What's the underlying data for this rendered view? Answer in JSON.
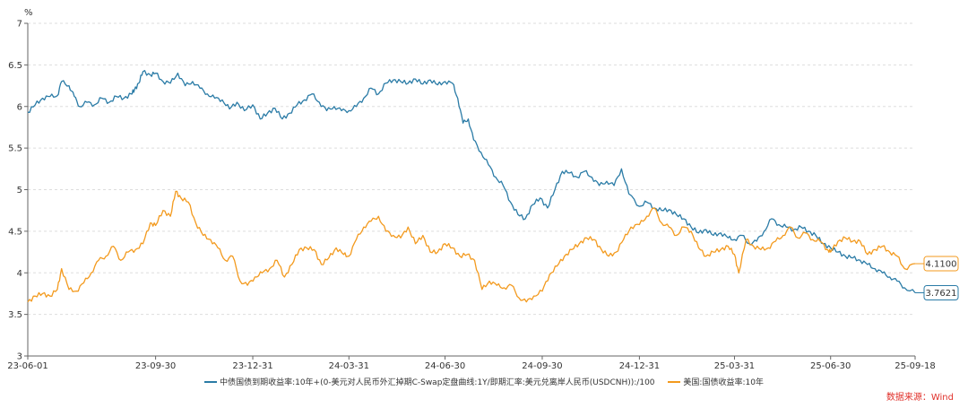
{
  "chart_data": {
    "type": "line",
    "title": "",
    "ylabel": "%",
    "ylim": [
      3,
      7
    ],
    "yticks": [
      "3",
      "3.5",
      "4",
      "4.5",
      "5",
      "5.5",
      "6",
      "6.5",
      "7"
    ],
    "xlim": [
      "2023-06-01",
      "2025-09-18"
    ],
    "xticks": [
      {
        "date": "2023-06-01",
        "label": "23-06-01"
      },
      {
        "date": "2023-09-30",
        "label": "23-09-30"
      },
      {
        "date": "2023-12-31",
        "label": "23-12-31"
      },
      {
        "date": "2024-03-31",
        "label": "24-03-31"
      },
      {
        "date": "2024-06-30",
        "label": "24-06-30"
      },
      {
        "date": "2024-09-30",
        "label": "24-09-30"
      },
      {
        "date": "2024-12-31",
        "label": "24-12-31"
      },
      {
        "date": "2025-03-31",
        "label": "25-03-31"
      },
      {
        "date": "2025-06-30",
        "label": "25-06-30"
      },
      {
        "date": "2025-09-18",
        "label": "25-09-18"
      }
    ],
    "series": [
      {
        "name": "中债国债到期收益率:10年+(0-美元对人民币外汇掉期C-Swap定盘曲线:1Y/即期汇率:美元兑离岸人民币(USDCNH)):/100",
        "color": "#2a7ba6",
        "end_label": "3.7621",
        "points": [
          [
            "2023-06-01",
            5.93
          ],
          [
            "2023-06-08",
            6.02
          ],
          [
            "2023-06-15",
            6.1
          ],
          [
            "2023-06-22",
            6.12
          ],
          [
            "2023-06-29",
            6.13
          ],
          [
            "2023-07-03",
            6.3
          ],
          [
            "2023-07-10",
            6.25
          ],
          [
            "2023-07-15",
            6.12
          ],
          [
            "2023-07-20",
            6.0
          ],
          [
            "2023-07-27",
            6.05
          ],
          [
            "2023-08-03",
            6.02
          ],
          [
            "2023-08-10",
            6.1
          ],
          [
            "2023-08-17",
            6.05
          ],
          [
            "2023-08-24",
            6.12
          ],
          [
            "2023-08-31",
            6.1
          ],
          [
            "2023-09-07",
            6.15
          ],
          [
            "2023-09-10",
            6.2
          ],
          [
            "2023-09-14",
            6.28
          ],
          [
            "2023-09-18",
            6.42
          ],
          [
            "2023-09-25",
            6.38
          ],
          [
            "2023-09-30",
            6.4
          ],
          [
            "2023-10-07",
            6.3
          ],
          [
            "2023-10-14",
            6.28
          ],
          [
            "2023-10-21",
            6.4
          ],
          [
            "2023-10-28",
            6.25
          ],
          [
            "2023-11-04",
            6.3
          ],
          [
            "2023-11-11",
            6.22
          ],
          [
            "2023-11-18",
            6.15
          ],
          [
            "2023-11-25",
            6.1
          ],
          [
            "2023-12-02",
            6.08
          ],
          [
            "2023-12-09",
            5.97
          ],
          [
            "2023-12-16",
            6.05
          ],
          [
            "2023-12-23",
            5.95
          ],
          [
            "2023-12-31",
            6.02
          ],
          [
            "2024-01-07",
            5.85
          ],
          [
            "2024-01-14",
            5.92
          ],
          [
            "2024-01-21",
            5.98
          ],
          [
            "2024-01-28",
            5.85
          ],
          [
            "2024-02-04",
            5.92
          ],
          [
            "2024-02-11",
            6.02
          ],
          [
            "2024-02-18",
            6.08
          ],
          [
            "2024-02-25",
            6.15
          ],
          [
            "2024-03-03",
            6.05
          ],
          [
            "2024-03-10",
            5.95
          ],
          [
            "2024-03-17",
            6.0
          ],
          [
            "2024-03-24",
            5.95
          ],
          [
            "2024-03-31",
            5.95
          ],
          [
            "2024-04-07",
            6.0
          ],
          [
            "2024-04-14",
            6.1
          ],
          [
            "2024-04-21",
            6.22
          ],
          [
            "2024-04-28",
            6.15
          ],
          [
            "2024-05-05",
            6.28
          ],
          [
            "2024-05-12",
            6.32
          ],
          [
            "2024-05-19",
            6.3
          ],
          [
            "2024-05-26",
            6.28
          ],
          [
            "2024-06-02",
            6.33
          ],
          [
            "2024-06-09",
            6.27
          ],
          [
            "2024-06-16",
            6.32
          ],
          [
            "2024-06-23",
            6.26
          ],
          [
            "2024-06-30",
            6.3
          ],
          [
            "2024-07-07",
            6.28
          ],
          [
            "2024-07-12",
            6.1
          ],
          [
            "2024-07-17",
            5.8
          ],
          [
            "2024-07-22",
            5.85
          ],
          [
            "2024-07-27",
            5.6
          ],
          [
            "2024-08-03",
            5.45
          ],
          [
            "2024-08-10",
            5.3
          ],
          [
            "2024-08-17",
            5.15
          ],
          [
            "2024-08-24",
            5.05
          ],
          [
            "2024-08-31",
            4.85
          ],
          [
            "2024-09-07",
            4.7
          ],
          [
            "2024-09-14",
            4.65
          ],
          [
            "2024-09-21",
            4.82
          ],
          [
            "2024-09-28",
            4.9
          ],
          [
            "2024-10-05",
            4.78
          ],
          [
            "2024-10-12",
            5.0
          ],
          [
            "2024-10-19",
            5.22
          ],
          [
            "2024-10-26",
            5.2
          ],
          [
            "2024-11-02",
            5.15
          ],
          [
            "2024-11-09",
            5.22
          ],
          [
            "2024-11-16",
            5.15
          ],
          [
            "2024-11-23",
            5.05
          ],
          [
            "2024-11-30",
            5.1
          ],
          [
            "2024-12-07",
            5.05
          ],
          [
            "2024-12-14",
            5.25
          ],
          [
            "2024-12-21",
            4.95
          ],
          [
            "2024-12-31",
            4.8
          ],
          [
            "2025-01-07",
            4.85
          ],
          [
            "2025-01-14",
            4.78
          ],
          [
            "2025-01-21",
            4.75
          ],
          [
            "2025-01-28",
            4.76
          ],
          [
            "2025-02-04",
            4.7
          ],
          [
            "2025-02-11",
            4.65
          ],
          [
            "2025-02-18",
            4.55
          ],
          [
            "2025-02-25",
            4.48
          ],
          [
            "2025-03-04",
            4.52
          ],
          [
            "2025-03-11",
            4.45
          ],
          [
            "2025-03-18",
            4.48
          ],
          [
            "2025-03-25",
            4.42
          ],
          [
            "2025-03-31",
            4.4
          ],
          [
            "2025-04-07",
            4.45
          ],
          [
            "2025-04-14",
            4.35
          ],
          [
            "2025-04-21",
            4.38
          ],
          [
            "2025-04-28",
            4.5
          ],
          [
            "2025-05-05",
            4.65
          ],
          [
            "2025-05-12",
            4.58
          ],
          [
            "2025-05-19",
            4.55
          ],
          [
            "2025-05-26",
            4.52
          ],
          [
            "2025-06-02",
            4.55
          ],
          [
            "2025-06-09",
            4.5
          ],
          [
            "2025-06-16",
            4.45
          ],
          [
            "2025-06-23",
            4.35
          ],
          [
            "2025-06-30",
            4.3
          ],
          [
            "2025-07-07",
            4.25
          ],
          [
            "2025-07-14",
            4.2
          ],
          [
            "2025-07-21",
            4.18
          ],
          [
            "2025-07-28",
            4.15
          ],
          [
            "2025-08-04",
            4.1
          ],
          [
            "2025-08-11",
            4.05
          ],
          [
            "2025-08-18",
            4.0
          ],
          [
            "2025-08-25",
            3.95
          ],
          [
            "2025-09-01",
            3.9
          ],
          [
            "2025-09-08",
            3.82
          ],
          [
            "2025-09-18",
            3.76
          ]
        ]
      },
      {
        "name": "美国:国债收益率:10年",
        "color": "#f39a1e",
        "end_label": "4.1100",
        "points": [
          [
            "2023-06-01",
            3.65
          ],
          [
            "2023-06-08",
            3.72
          ],
          [
            "2023-06-15",
            3.75
          ],
          [
            "2023-06-22",
            3.72
          ],
          [
            "2023-06-29",
            3.8
          ],
          [
            "2023-07-03",
            4.05
          ],
          [
            "2023-07-10",
            3.8
          ],
          [
            "2023-07-17",
            3.78
          ],
          [
            "2023-07-24",
            3.88
          ],
          [
            "2023-07-31",
            4.0
          ],
          [
            "2023-08-07",
            4.15
          ],
          [
            "2023-08-14",
            4.2
          ],
          [
            "2023-08-21",
            4.32
          ],
          [
            "2023-08-28",
            4.15
          ],
          [
            "2023-09-04",
            4.25
          ],
          [
            "2023-09-11",
            4.28
          ],
          [
            "2023-09-18",
            4.35
          ],
          [
            "2023-09-25",
            4.6
          ],
          [
            "2023-09-30",
            4.57
          ],
          [
            "2023-10-07",
            4.75
          ],
          [
            "2023-10-14",
            4.68
          ],
          [
            "2023-10-19",
            4.98
          ],
          [
            "2023-10-24",
            4.9
          ],
          [
            "2023-10-31",
            4.85
          ],
          [
            "2023-11-07",
            4.6
          ],
          [
            "2023-11-14",
            4.45
          ],
          [
            "2023-11-21",
            4.4
          ],
          [
            "2023-11-28",
            4.3
          ],
          [
            "2023-12-05",
            4.15
          ],
          [
            "2023-12-12",
            4.2
          ],
          [
            "2023-12-19",
            3.9
          ],
          [
            "2023-12-26",
            3.85
          ],
          [
            "2024-01-02",
            3.95
          ],
          [
            "2024-01-09",
            4.0
          ],
          [
            "2024-01-16",
            4.05
          ],
          [
            "2024-01-23",
            4.15
          ],
          [
            "2024-01-30",
            3.95
          ],
          [
            "2024-02-06",
            4.1
          ],
          [
            "2024-02-13",
            4.28
          ],
          [
            "2024-02-20",
            4.3
          ],
          [
            "2024-02-27",
            4.28
          ],
          [
            "2024-03-05",
            4.1
          ],
          [
            "2024-03-12",
            4.18
          ],
          [
            "2024-03-19",
            4.3
          ],
          [
            "2024-03-26",
            4.22
          ],
          [
            "2024-03-31",
            4.2
          ],
          [
            "2024-04-07",
            4.4
          ],
          [
            "2024-04-14",
            4.55
          ],
          [
            "2024-04-21",
            4.62
          ],
          [
            "2024-04-28",
            4.68
          ],
          [
            "2024-05-05",
            4.5
          ],
          [
            "2024-05-12",
            4.45
          ],
          [
            "2024-05-19",
            4.42
          ],
          [
            "2024-05-26",
            4.55
          ],
          [
            "2024-06-02",
            4.35
          ],
          [
            "2024-06-09",
            4.45
          ],
          [
            "2024-06-16",
            4.25
          ],
          [
            "2024-06-23",
            4.25
          ],
          [
            "2024-06-30",
            4.35
          ],
          [
            "2024-07-07",
            4.3
          ],
          [
            "2024-07-14",
            4.2
          ],
          [
            "2024-07-21",
            4.22
          ],
          [
            "2024-07-28",
            4.15
          ],
          [
            "2024-08-04",
            3.8
          ],
          [
            "2024-08-11",
            3.9
          ],
          [
            "2024-08-18",
            3.85
          ],
          [
            "2024-08-25",
            3.82
          ],
          [
            "2024-09-01",
            3.85
          ],
          [
            "2024-09-08",
            3.7
          ],
          [
            "2024-09-15",
            3.65
          ],
          [
            "2024-09-22",
            3.72
          ],
          [
            "2024-09-30",
            3.78
          ],
          [
            "2024-10-07",
            3.98
          ],
          [
            "2024-10-14",
            4.08
          ],
          [
            "2024-10-21",
            4.2
          ],
          [
            "2024-10-28",
            4.28
          ],
          [
            "2024-11-04",
            4.35
          ],
          [
            "2024-11-11",
            4.42
          ],
          [
            "2024-11-18",
            4.4
          ],
          [
            "2024-11-25",
            4.28
          ],
          [
            "2024-12-02",
            4.2
          ],
          [
            "2024-12-09",
            4.25
          ],
          [
            "2024-12-16",
            4.4
          ],
          [
            "2024-12-23",
            4.55
          ],
          [
            "2024-12-31",
            4.58
          ],
          [
            "2025-01-07",
            4.68
          ],
          [
            "2025-01-14",
            4.78
          ],
          [
            "2025-01-21",
            4.6
          ],
          [
            "2025-01-28",
            4.55
          ],
          [
            "2025-02-04",
            4.45
          ],
          [
            "2025-02-11",
            4.55
          ],
          [
            "2025-02-18",
            4.5
          ],
          [
            "2025-02-25",
            4.3
          ],
          [
            "2025-03-04",
            4.2
          ],
          [
            "2025-03-11",
            4.25
          ],
          [
            "2025-03-18",
            4.28
          ],
          [
            "2025-03-25",
            4.32
          ],
          [
            "2025-03-31",
            4.22
          ],
          [
            "2025-04-04",
            4.0
          ],
          [
            "2025-04-11",
            4.4
          ],
          [
            "2025-04-18",
            4.32
          ],
          [
            "2025-04-25",
            4.28
          ],
          [
            "2025-05-02",
            4.3
          ],
          [
            "2025-05-09",
            4.38
          ],
          [
            "2025-05-16",
            4.45
          ],
          [
            "2025-05-23",
            4.55
          ],
          [
            "2025-05-30",
            4.42
          ],
          [
            "2025-06-06",
            4.48
          ],
          [
            "2025-06-13",
            4.4
          ],
          [
            "2025-06-20",
            4.38
          ],
          [
            "2025-06-27",
            4.28
          ],
          [
            "2025-06-30",
            4.25
          ],
          [
            "2025-07-07",
            4.38
          ],
          [
            "2025-07-14",
            4.42
          ],
          [
            "2025-07-21",
            4.38
          ],
          [
            "2025-07-28",
            4.38
          ],
          [
            "2025-08-04",
            4.22
          ],
          [
            "2025-08-11",
            4.28
          ],
          [
            "2025-08-18",
            4.32
          ],
          [
            "2025-08-25",
            4.25
          ],
          [
            "2025-09-01",
            4.2
          ],
          [
            "2025-09-08",
            4.05
          ],
          [
            "2025-09-18",
            4.11
          ]
        ]
      }
    ],
    "source": "数据来源：Wind"
  }
}
